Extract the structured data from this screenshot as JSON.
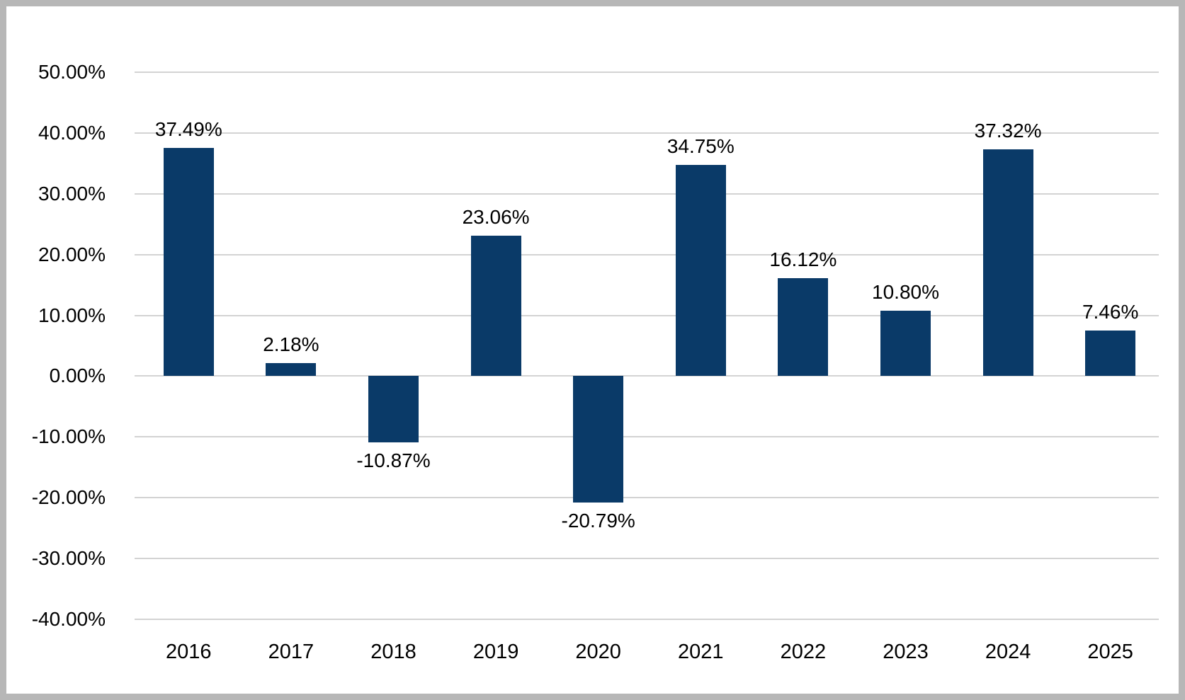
{
  "chart_data": {
    "type": "bar",
    "title": "",
    "xlabel": "",
    "ylabel": "",
    "categories": [
      "2016",
      "2017",
      "2018",
      "2019",
      "2020",
      "2021",
      "2022",
      "2023",
      "2024",
      "2025"
    ],
    "values": [
      37.49,
      2.18,
      -10.87,
      23.06,
      -20.79,
      34.75,
      16.12,
      10.8,
      37.32,
      7.46
    ],
    "data_labels": [
      "37.49%",
      "2.18%",
      "-10.87%",
      "23.06%",
      "-20.79%",
      "34.75%",
      "16.12%",
      "10.80%",
      "37.32%",
      "7.46%"
    ],
    "yticks": [
      "50.00%",
      "40.00%",
      "30.00%",
      "20.00%",
      "10.00%",
      "0.00%",
      "-10.00%",
      "-20.00%",
      "-30.00%",
      "-40.00%"
    ],
    "ytick_values": [
      50,
      40,
      30,
      20,
      10,
      0,
      -10,
      -20,
      -30,
      -40
    ],
    "ylim": [
      -40,
      50
    ],
    "grid": true,
    "legend": false,
    "colors": {
      "bar": "#0A3A68",
      "gridline": "#D3D3D3",
      "frame_border": "#B7B7B7",
      "text": "#000000",
      "background": "#FFFFFF"
    }
  }
}
